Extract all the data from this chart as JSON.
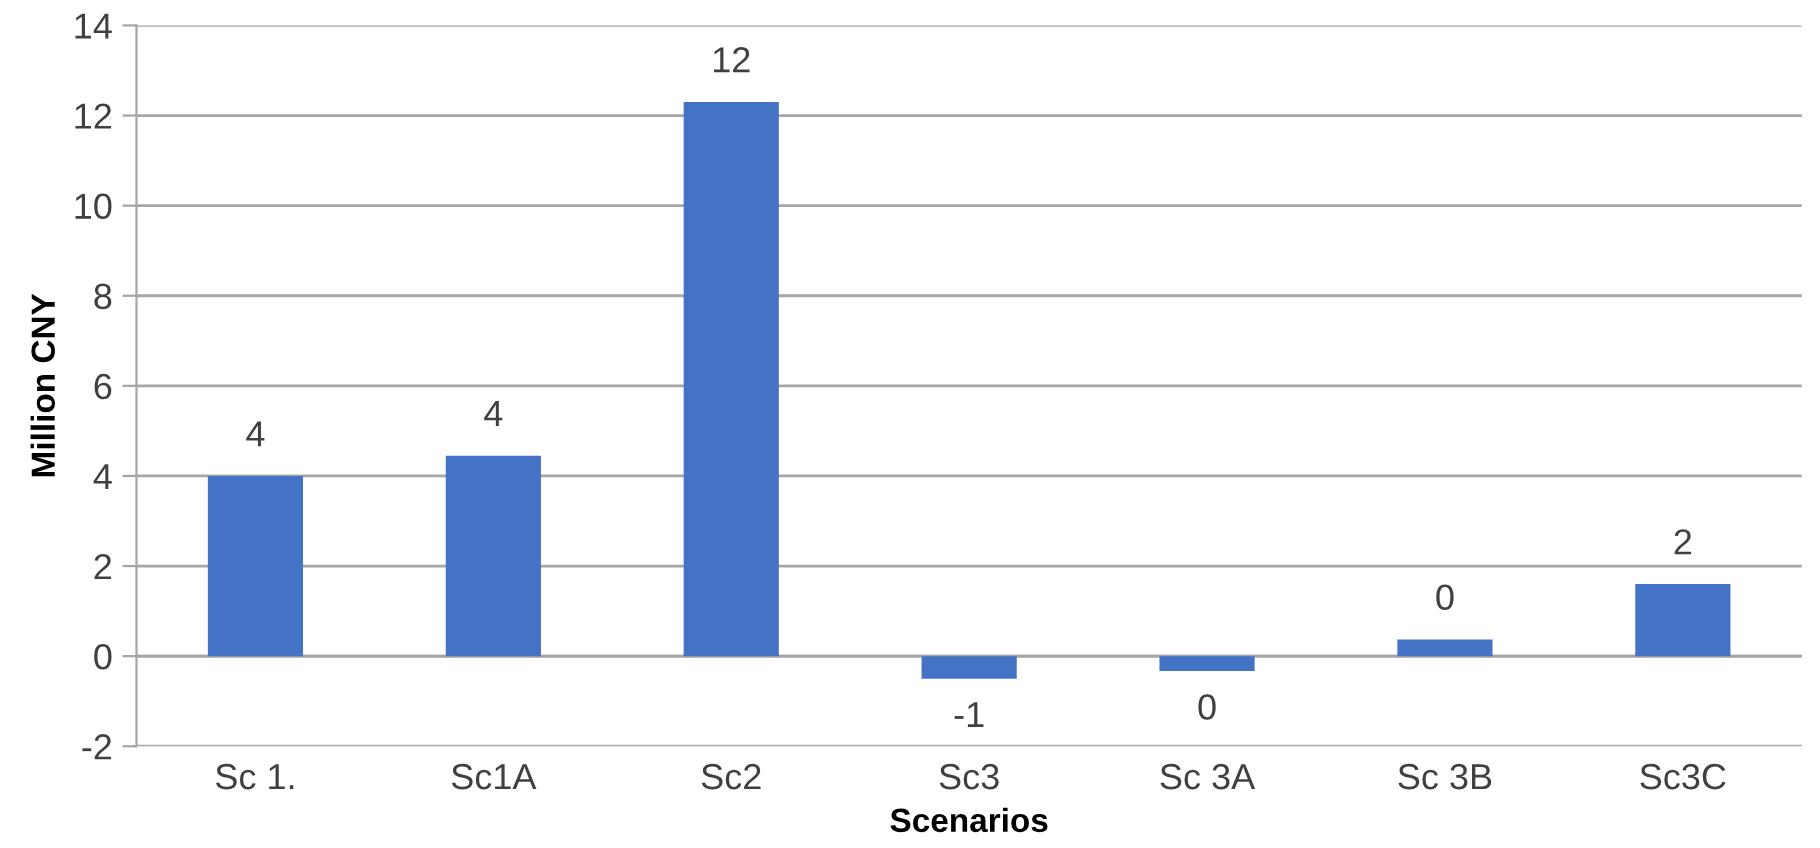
{
  "chart_data": {
    "type": "bar",
    "xlabel": "Scenarios",
    "ylabel": "Million CNY",
    "categories": [
      "Sc 1.",
      "Sc1A",
      "Sc2",
      "Sc3",
      "Sc 3A",
      "Sc 3B",
      "Sc3C"
    ],
    "values": [
      4.0,
      4.45,
      12.3,
      -0.5,
      -0.33,
      0.37,
      1.6
    ],
    "value_labels": [
      "4",
      "4",
      "12",
      "-1",
      "0",
      "0",
      "2"
    ],
    "color": "#4472c4",
    "ylim": [
      -2,
      14
    ],
    "yticks": [
      -2,
      0,
      2,
      4,
      6,
      8,
      10,
      12,
      14
    ],
    "grid": "y",
    "legend": false
  }
}
